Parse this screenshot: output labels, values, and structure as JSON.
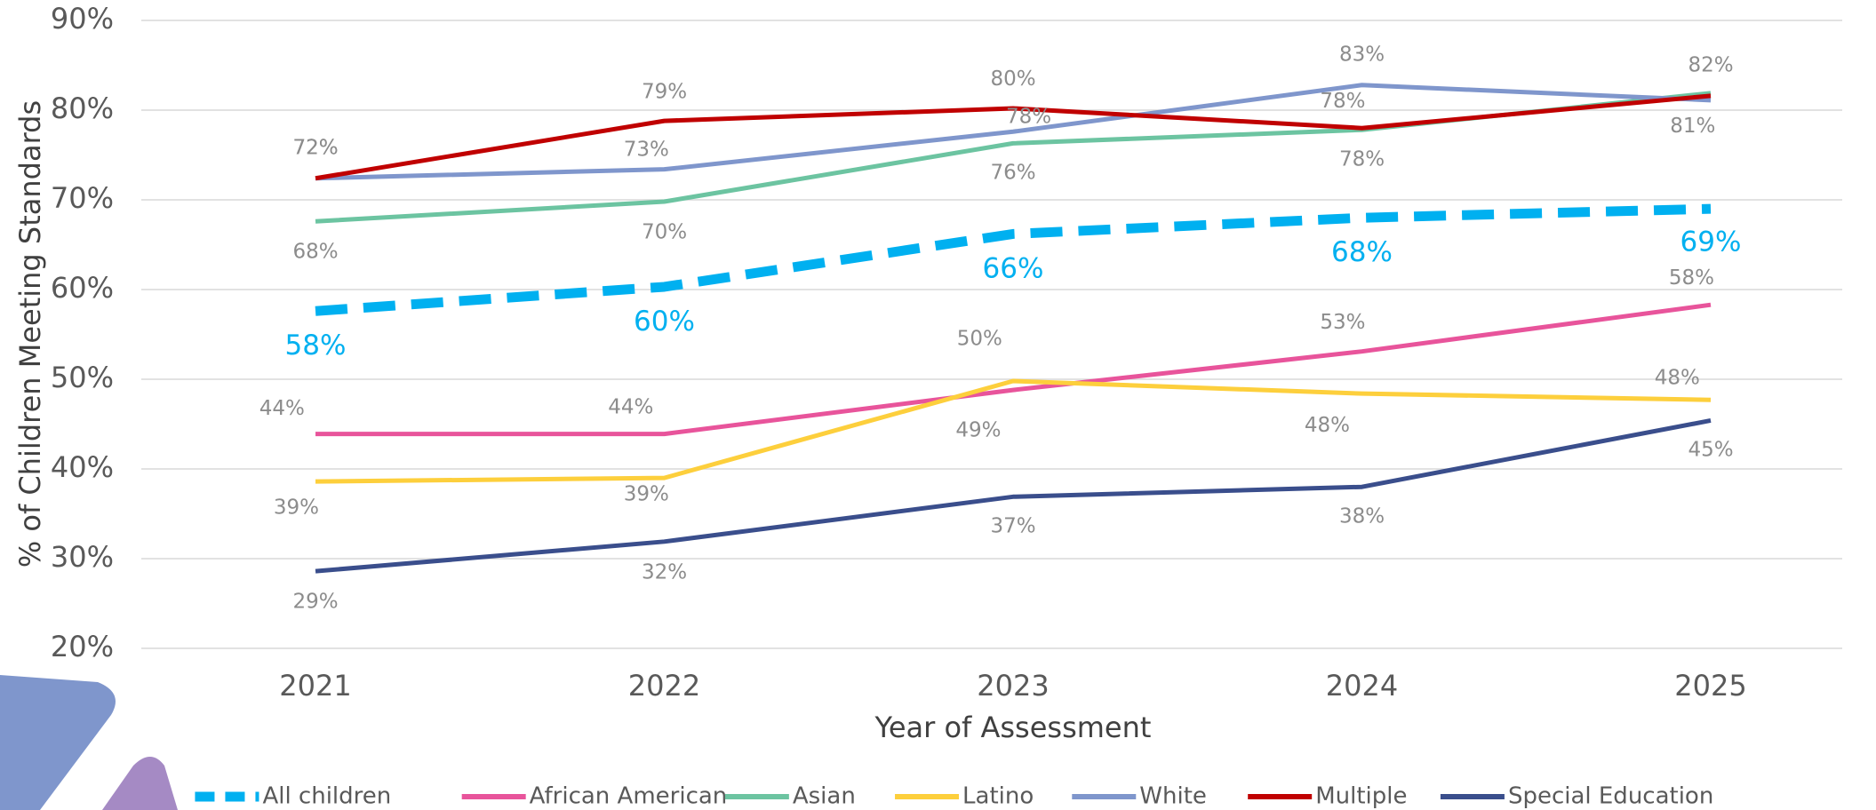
{
  "chart_data": {
    "type": "line",
    "x_label": "Year of Assessment",
    "y_label": "% of Children Meeting Standards",
    "categories": [
      "2021",
      "2022",
      "2023",
      "2024",
      "2025"
    ],
    "ylim": [
      20,
      90
    ],
    "yticks": [
      {
        "value": 20,
        "label": "20%"
      },
      {
        "value": 30,
        "label": "30%"
      },
      {
        "value": 40,
        "label": "40%"
      },
      {
        "value": 50,
        "label": "50%"
      },
      {
        "value": 60,
        "label": "60%"
      },
      {
        "value": 70,
        "label": "70%"
      },
      {
        "value": 80,
        "label": "80%"
      },
      {
        "value": 90,
        "label": "90%"
      }
    ],
    "grid": true,
    "legend": "bottom",
    "series": [
      {
        "name": "All children",
        "color": "#00b0f0",
        "dashed": true,
        "values": [
          57.6,
          60.3,
          66.2,
          68.0,
          69.0
        ],
        "value_labels": [
          "58%",
          "60%",
          "66%",
          "68%",
          "69%"
        ]
      },
      {
        "name": "African American",
        "color": "#e8549b",
        "values": [
          43.9,
          43.9,
          48.8,
          53.1,
          58.3
        ],
        "value_labels": [
          "44%",
          "44%",
          "49%",
          "53%",
          "58%"
        ]
      },
      {
        "name": "Asian",
        "color": "#6cc4a1",
        "values": [
          67.6,
          69.8,
          76.3,
          77.8,
          81.9
        ],
        "value_labels": [
          "68%",
          "70%",
          "76%",
          "78%",
          "82%"
        ]
      },
      {
        "name": "Latino",
        "color": "#fdcf3c",
        "values": [
          38.6,
          39.0,
          49.8,
          48.4,
          47.7
        ],
        "value_labels": [
          "39%",
          "39%",
          "50%",
          "48%",
          "48%"
        ]
      },
      {
        "name": "White",
        "color": "#7f96cc",
        "values": [
          72.4,
          73.4,
          77.6,
          82.8,
          81.1
        ],
        "value_labels": [
          "72%",
          "73%",
          "78%",
          "83%",
          "81%"
        ]
      },
      {
        "name": "Multiple",
        "color": "#c00000",
        "values": [
          72.4,
          78.8,
          80.2,
          78.0,
          81.6
        ],
        "value_labels": [
          "72%",
          "79%",
          "80%",
          "78%",
          null
        ]
      },
      {
        "name": "Special Education",
        "color": "#3a4e8c",
        "values": [
          28.6,
          31.9,
          36.9,
          38.0,
          45.4
        ],
        "value_labels": [
          "29%",
          "32%",
          "37%",
          "38%",
          "45%"
        ]
      }
    ]
  }
}
